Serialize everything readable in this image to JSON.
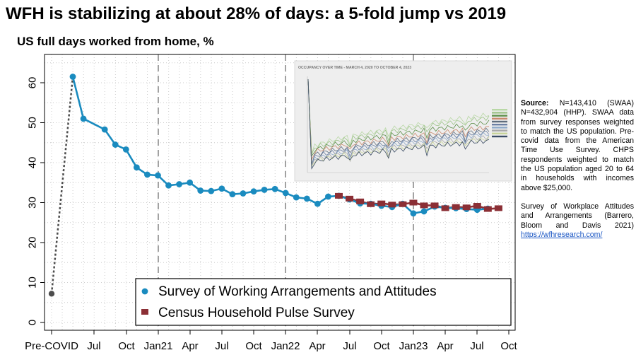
{
  "title": "WFH is stabilizing at about 28% of days: a 5-fold jump vs 2019",
  "subtitle": "US full days worked from home, %",
  "notes": {
    "source_label": "Source:",
    "source_text": "N=143,410 (SWAA) N=432,904 (HHP). SWAA data from survey responses weighted to match the US population. Pre-covid data from the American Time Use Survey. CHPS respondents weighted to match the US population aged 20 to 64 in households with incomes above $25,000.",
    "citation": "Survey of Workplace Attitudes and Arrangements (Barrero, Bloom and Davis 2021)",
    "link": "https://wfhresearch.com/"
  },
  "inset": {
    "title": "OCCUPANCY OVER TIME - MARCH 4, 2020 TO OCTOBER 4, 2023"
  },
  "colors": {
    "swaa": "#1a8bbf",
    "hhp": "#8b2f35",
    "precovid": "#4d4d4d",
    "grid": "#cccccc",
    "dashed": "#8c8c8c"
  },
  "chart_data": {
    "type": "line",
    "xlabels": [
      "Pre-COVID",
      "Jul",
      "Oct",
      "Jan21",
      "Apr",
      "Jul",
      "Oct",
      "Jan22",
      "Apr",
      "Jul",
      "Oct",
      "Jan23",
      "Apr",
      "Jul",
      "Oct"
    ],
    "ylim": [
      0,
      65
    ],
    "yticks": [
      0,
      10,
      20,
      30,
      40,
      50,
      60
    ],
    "grid": true,
    "legend_position": "bottom-right",
    "precovid": {
      "x": "2019",
      "y": 7.2
    },
    "series": [
      {
        "name": "Survey of Working Arrangements and Attitudes",
        "x": [
          "2020-05",
          "2020-06",
          "2020-08",
          "2020-09",
          "2020-10",
          "2020-11",
          "2020-12",
          "2021-01",
          "2021-02",
          "2021-03",
          "2021-04",
          "2021-05",
          "2021-06",
          "2021-07",
          "2021-08",
          "2021-09",
          "2021-10",
          "2021-11",
          "2021-12",
          "2022-01",
          "2022-02",
          "2022-03",
          "2022-04",
          "2022-05",
          "2022-06",
          "2022-07",
          "2022-08",
          "2022-09",
          "2022-10",
          "2022-11",
          "2022-12",
          "2023-01",
          "2023-02",
          "2023-03",
          "2023-04",
          "2023-05",
          "2023-06",
          "2023-07",
          "2023-08"
        ],
        "values": [
          61.5,
          51.0,
          48.3,
          44.5,
          43.3,
          38.8,
          37.0,
          36.8,
          34.3,
          34.6,
          35.0,
          33.0,
          32.9,
          33.5,
          32.1,
          32.3,
          32.8,
          33.2,
          33.4,
          32.4,
          31.3,
          31.0,
          29.7,
          31.5,
          31.7,
          30.8,
          29.8,
          29.7,
          29.2,
          28.9,
          29.7,
          27.3,
          27.8,
          29.0,
          28.7,
          28.6,
          28.4,
          28.2,
          28.5
        ]
      },
      {
        "name": "Census Household Pulse Survey",
        "x": [
          "2022-06",
          "2022-07",
          "2022-08",
          "2022-09",
          "2022-10",
          "2022-11",
          "2022-12",
          "2023-01",
          "2023-02",
          "2023-03",
          "2023-04",
          "2023-05",
          "2023-06",
          "2023-07",
          "2023-08",
          "2023-09"
        ],
        "values": [
          31.7,
          31.0,
          30.3,
          29.6,
          29.8,
          29.5,
          29.6,
          30.0,
          29.3,
          29.3,
          28.6,
          28.9,
          28.8,
          29.2,
          28.4,
          28.6
        ]
      }
    ]
  }
}
